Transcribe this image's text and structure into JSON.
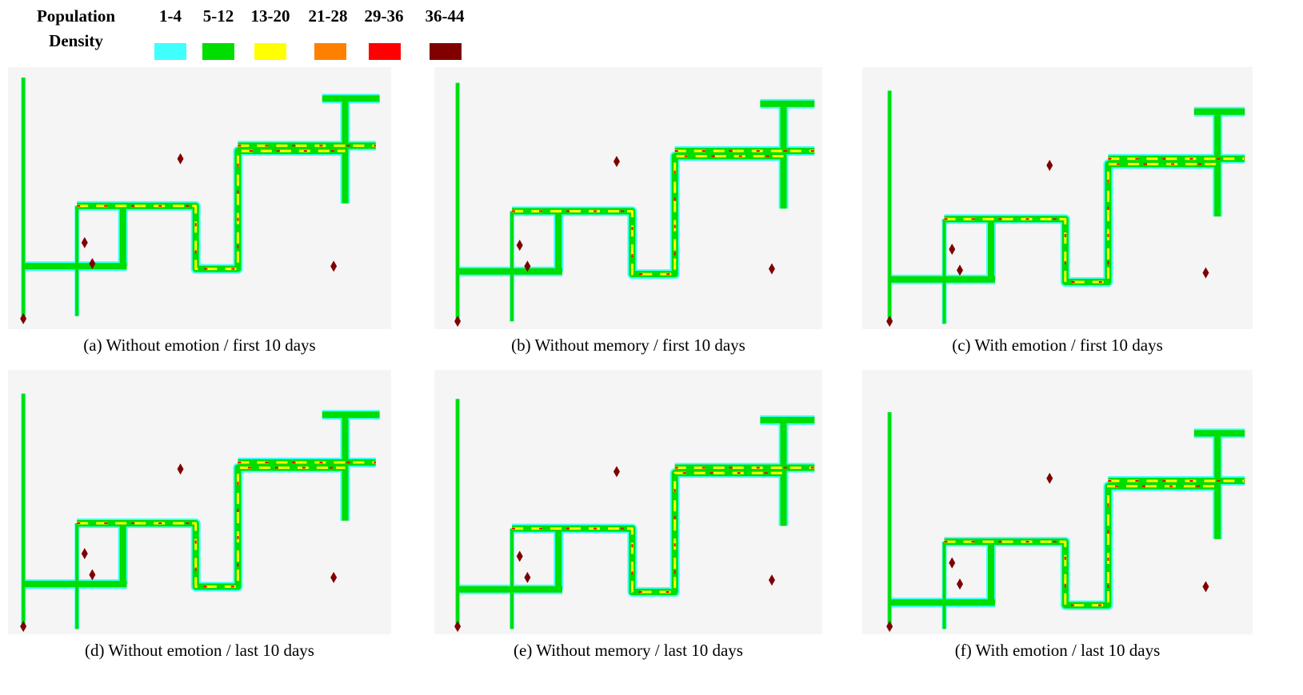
{
  "legend": {
    "title_lines": [
      "Population",
      "Density"
    ],
    "items": [
      {
        "label": "1-4",
        "color": "#40ffff"
      },
      {
        "label": "5-12",
        "color": "#00dd00"
      },
      {
        "label": "13-20",
        "color": "#ffff00"
      },
      {
        "label": "21-28",
        "color": "#ff8000"
      },
      {
        "label": "29-36",
        "color": "#ff0000"
      },
      {
        "label": "36-44",
        "color": "#800000"
      }
    ]
  },
  "panels": [
    {
      "caption": "(a) Without emotion / first 10 days"
    },
    {
      "caption": "(b) Without memory / first 10 days"
    },
    {
      "caption": "(c) With emotion / first 10 days"
    },
    {
      "caption": "(d) Without emotion / last 10 days"
    },
    {
      "caption": "(e) Without memory / last 10 days"
    },
    {
      "caption": "(f) With emotion / last 10 days"
    }
  ]
}
